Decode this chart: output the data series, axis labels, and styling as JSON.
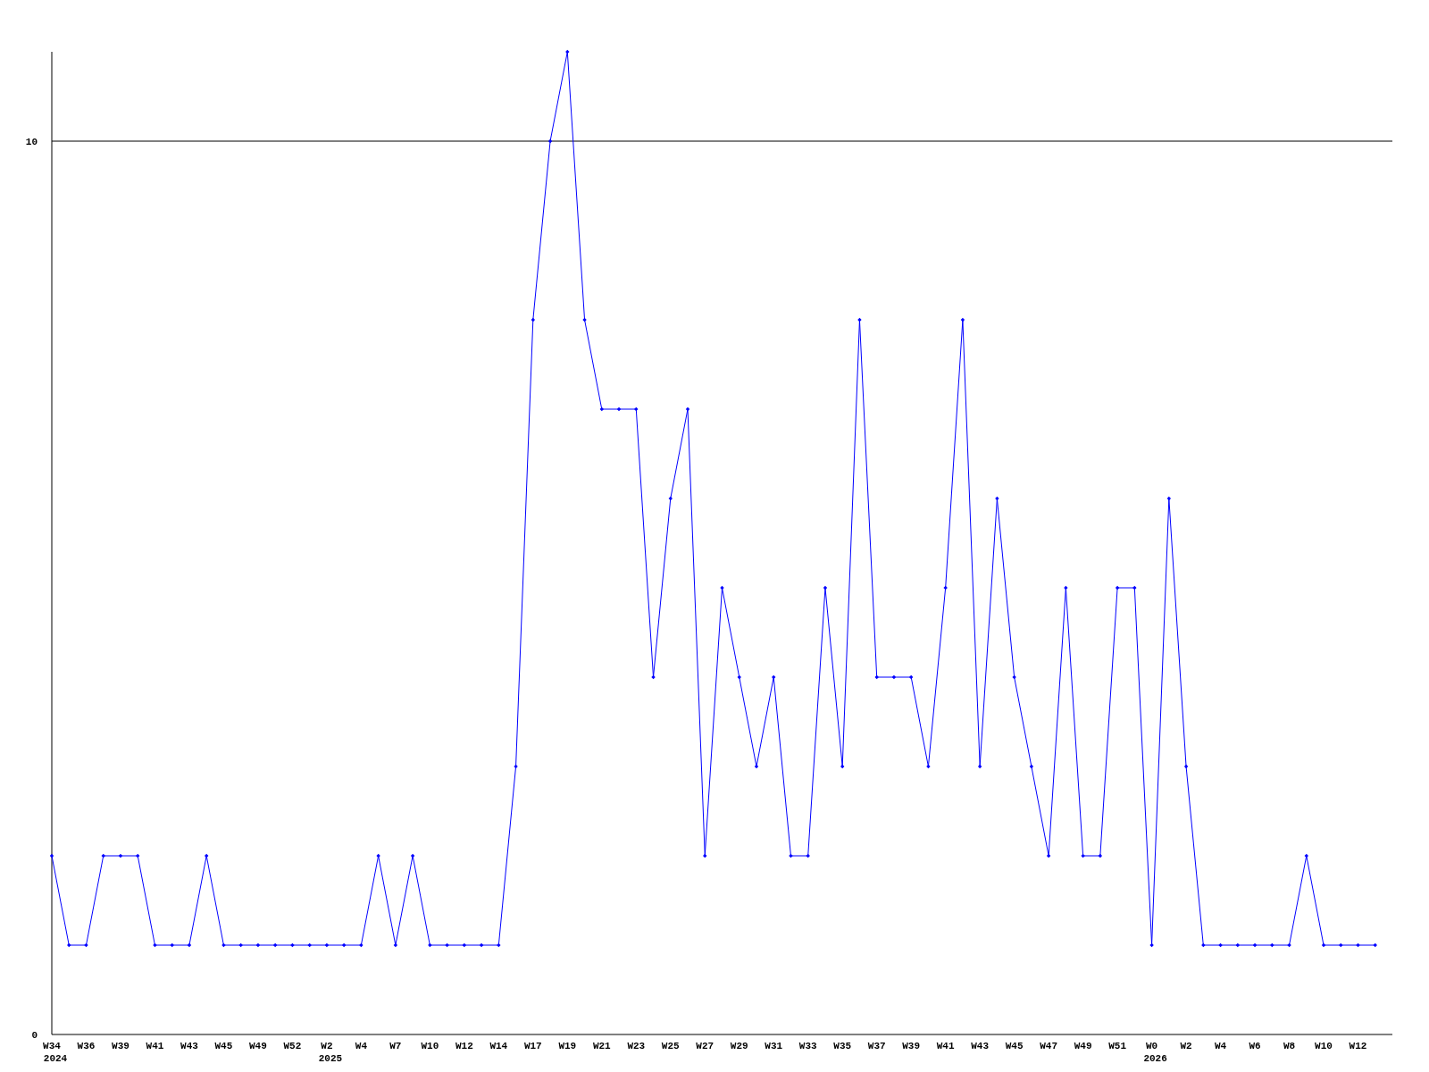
{
  "chart_data": {
    "type": "line",
    "categories": [
      "W34\n2024",
      null,
      "W36",
      null,
      "W39",
      null,
      "W41",
      null,
      "W43",
      null,
      "W45",
      null,
      "W49",
      null,
      "W52",
      null,
      "W2\n2025",
      null,
      "W4",
      null,
      "W7",
      null,
      "W10",
      null,
      "W12",
      null,
      "W14",
      null,
      "W17",
      null,
      "W19",
      null,
      "W21",
      null,
      "W23",
      null,
      "W25",
      null,
      "W27",
      null,
      "W29",
      null,
      "W31",
      null,
      "W33",
      null,
      "W35",
      null,
      "W37",
      null,
      "W39",
      null,
      "W41",
      null,
      "W43",
      null,
      "W45",
      null,
      "W47",
      null,
      "W49",
      null,
      "W51",
      null,
      "W0\n2026",
      null,
      "W2",
      null,
      "W4",
      null,
      "W6",
      null,
      "W8",
      null,
      "W10",
      null,
      "W12",
      null
    ],
    "series": [
      {
        "color": "#0000ff",
        "values": [
          2,
          1,
          1,
          2,
          2,
          2,
          1,
          1,
          1,
          2,
          1,
          1,
          1,
          1,
          1,
          1,
          1,
          1,
          1,
          2,
          1,
          2,
          1,
          1,
          1,
          1,
          1,
          3,
          8,
          10,
          11,
          8,
          7,
          7,
          7,
          4,
          6,
          7,
          2,
          5,
          4,
          3,
          4,
          2,
          2,
          5,
          3,
          8,
          4,
          4,
          4,
          3,
          5,
          8,
          3,
          6,
          4,
          3,
          2,
          5,
          2,
          2,
          5,
          5,
          1,
          6,
          3,
          1,
          1,
          1,
          1,
          1,
          1,
          2,
          1,
          1,
          1,
          1
        ]
      }
    ],
    "ylim": [
      0,
      11
    ],
    "yticks": [
      0,
      10
    ],
    "grid": "y",
    "marker": "diamond",
    "line_style": "solid"
  }
}
